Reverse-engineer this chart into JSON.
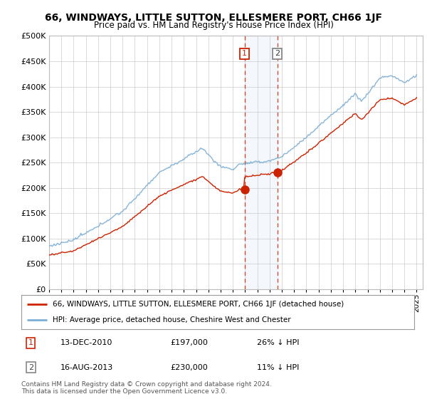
{
  "title": "66, WINDWAYS, LITTLE SUTTON, ELLESMERE PORT, CH66 1JF",
  "subtitle": "Price paid vs. HM Land Registry's House Price Index (HPI)",
  "ylim": [
    0,
    500000
  ],
  "yticks": [
    0,
    50000,
    100000,
    150000,
    200000,
    250000,
    300000,
    350000,
    400000,
    450000,
    500000
  ],
  "sale1_date": "13-DEC-2010",
  "sale1_price": 197000,
  "sale1_label": "26% ↓ HPI",
  "sale2_date": "16-AUG-2013",
  "sale2_price": 230000,
  "sale2_label": "11% ↓ HPI",
  "hpi_color": "#7aadd4",
  "price_color": "#cc2200",
  "legend_property": "66, WINDWAYS, LITTLE SUTTON, ELLESMERE PORT, CH66 1JF (detached house)",
  "legend_hpi": "HPI: Average price, detached house, Cheshire West and Chester",
  "footnote": "Contains HM Land Registry data © Crown copyright and database right 2024.\nThis data is licensed under the Open Government Licence v3.0.",
  "sale1_year": 2010.95,
  "sale2_year": 2013.62,
  "background_color": "#ffffff",
  "grid_color": "#cccccc",
  "xstart": 1995,
  "xend": 2025.5
}
